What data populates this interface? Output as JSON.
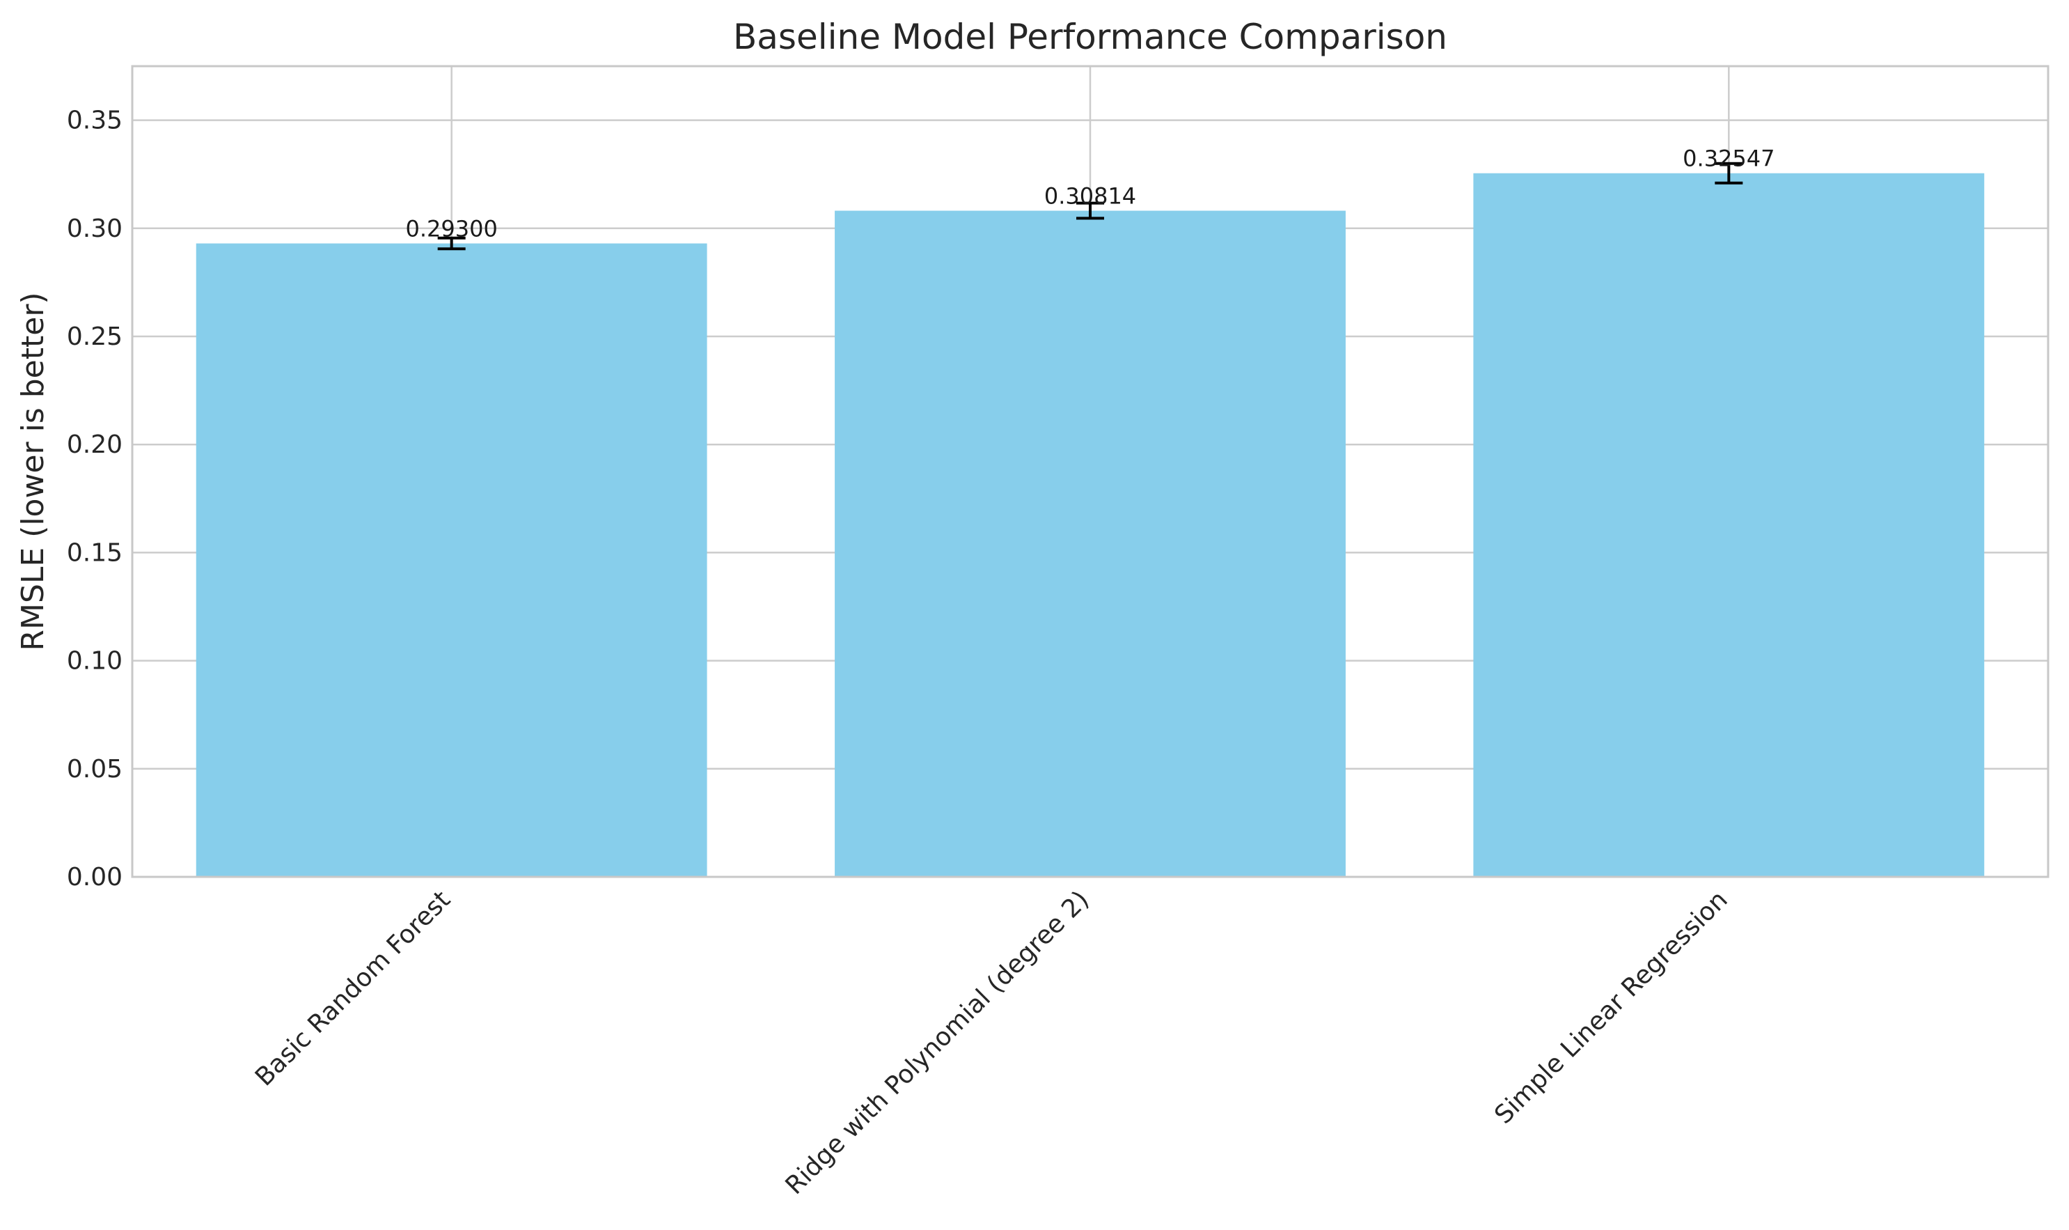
{
  "chart_data": {
    "type": "bar",
    "title": "Baseline Model Performance Comparison",
    "xlabel": "",
    "ylabel": "RMSLE (lower is better)",
    "categories": [
      "Basic Random Forest",
      "Ridge with Polynomial (degree 2)",
      "Simple Linear Regression"
    ],
    "values": [
      0.293,
      0.30814,
      0.32547
    ],
    "errors": [
      0.0025,
      0.0035,
      0.0045
    ],
    "value_labels": [
      "0.29300",
      "0.30814",
      "0.32547"
    ],
    "ylim": [
      0,
      0.375
    ],
    "yticks": [
      0.0,
      0.05,
      0.1,
      0.15,
      0.2,
      0.25,
      0.3,
      0.35
    ],
    "ytick_labels": [
      "0.00",
      "0.05",
      "0.10",
      "0.15",
      "0.20",
      "0.25",
      "0.30",
      "0.35"
    ],
    "grid": true,
    "bar_color": "#87CEEB",
    "error_color": "#000000"
  }
}
